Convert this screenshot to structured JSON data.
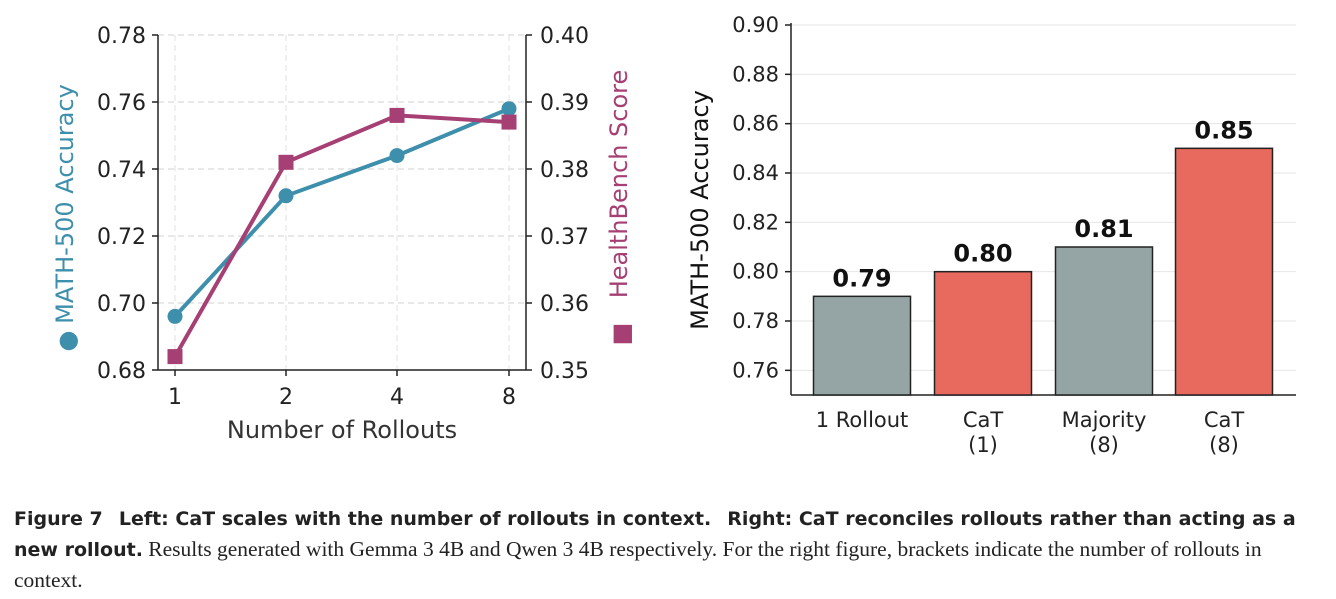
{
  "chart_data": [
    {
      "type": "line",
      "x": [
        1,
        2,
        4,
        8
      ],
      "x_tick_labels": [
        "1",
        "2",
        "4",
        "8"
      ],
      "xlabel": "Number of Rollouts",
      "ylabel": "MATH-500 Accuracy",
      "ylabel_marker": "●",
      "ylim": [
        0.68,
        0.78
      ],
      "yticks": [
        "0.68",
        "0.70",
        "0.72",
        "0.74",
        "0.76",
        "0.78"
      ],
      "y2label": "HealthBench Score",
      "y2label_marker": "■",
      "y2lim": [
        0.35,
        0.4
      ],
      "y2ticks": [
        "0.35",
        "0.36",
        "0.37",
        "0.38",
        "0.39",
        "0.40"
      ],
      "grid": true,
      "series": [
        {
          "name": "MATH-500 Accuracy",
          "axis": "left",
          "marker": "circle",
          "color": "#3e8fac",
          "values": [
            0.696,
            0.732,
            0.744,
            0.758
          ]
        },
        {
          "name": "HealthBench Score",
          "axis": "right",
          "marker": "square",
          "color": "#a63f73",
          "values": [
            0.352,
            0.381,
            0.388,
            0.387
          ]
        }
      ]
    },
    {
      "type": "bar",
      "categories": [
        [
          "1 Rollout"
        ],
        [
          "CaT",
          "(1)"
        ],
        [
          "Majority",
          "(8)"
        ],
        [
          "CaT",
          "(8)"
        ]
      ],
      "values": [
        0.79,
        0.8,
        0.81,
        0.85
      ],
      "value_labels": [
        "0.79",
        "0.80",
        "0.81",
        "0.85"
      ],
      "bar_colors": [
        "#95a5a6",
        "#e8695e",
        "#95a5a6",
        "#e8695e"
      ],
      "ylabel": "MATH-500 Accuracy",
      "ylim": [
        0.75,
        0.9
      ],
      "yticks": [
        "0.76",
        "0.78",
        "0.80",
        "0.82",
        "0.84",
        "0.86",
        "0.88",
        "0.90"
      ],
      "grid": true
    }
  ],
  "caption": {
    "figure_label": "Figure 7",
    "left_heading": "Left: CaT scales with the number of rollouts in context.",
    "right_heading": "Right: CaT reconciles rollouts rather than acting as a new rollout.",
    "text": "Results generated with Gemma 3 4B and Qwen 3 4B respectively. For the right figure, brackets indicate the number of rollouts in context."
  },
  "colors": {
    "accuracy": "#3e8fac",
    "healthbench": "#a63f73",
    "gray_bar": "#95a5a6",
    "red_bar": "#e8695e"
  }
}
